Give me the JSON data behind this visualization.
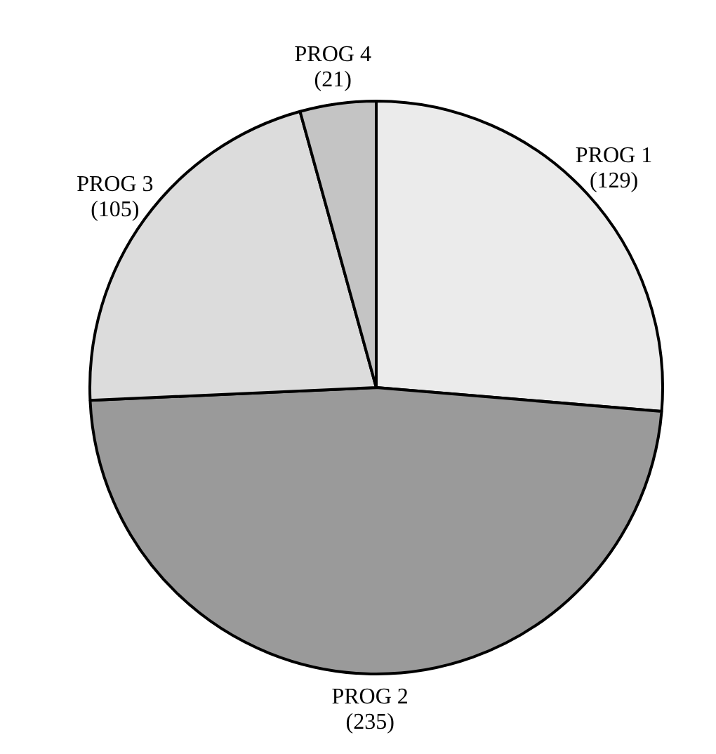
{
  "chart_data": {
    "type": "pie",
    "categories": [
      "PROG 1",
      "PROG 2",
      "PROG 3",
      "PROG 4"
    ],
    "values": [
      129,
      235,
      105,
      21
    ],
    "colors": [
      "#ebebeb",
      "#9a9a9a",
      "#dcdcdc",
      "#c4c4c4"
    ],
    "value_labels": [
      "(129)",
      "(235)",
      "(105)",
      "(21)"
    ],
    "legend": false
  }
}
